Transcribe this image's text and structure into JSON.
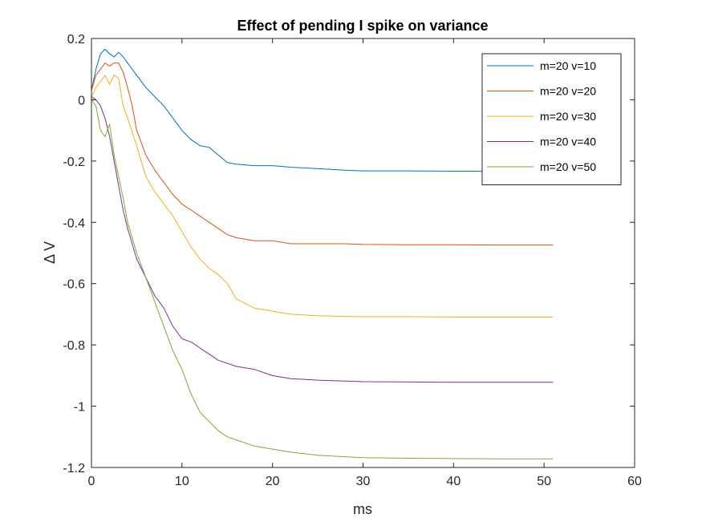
{
  "chart_data": {
    "type": "line",
    "title": "Effect of pending I spike on variance",
    "xlabel": "ms",
    "ylabel": "Δ V",
    "xlim": [
      0,
      60
    ],
    "ylim": [
      -1.2,
      0.2
    ],
    "xticks": [
      0,
      10,
      20,
      30,
      40,
      50,
      60
    ],
    "yticks": [
      -1.2,
      -1,
      -0.8,
      -0.6,
      -0.4,
      -0.2,
      0,
      0.2
    ],
    "xtick_labels": [
      "0",
      "10",
      "20",
      "30",
      "40",
      "50",
      "60"
    ],
    "ytick_labels": [
      "-1.2",
      "-1",
      "-0.8",
      "-0.6",
      "-0.4",
      "-0.2",
      "0",
      "0.2"
    ],
    "grid": false,
    "legend_position": "top-right",
    "series": [
      {
        "name": "m=20 v=10",
        "color": "#0072bd",
        "x": [
          0,
          0.5,
          1,
          1.5,
          2,
          2.5,
          3,
          3.5,
          4,
          5,
          6,
          7,
          8,
          9,
          10,
          11,
          12,
          13,
          14,
          15,
          16,
          18,
          20,
          22,
          25,
          28,
          30,
          35,
          40,
          45,
          51
        ],
        "y": [
          0.03,
          0.1,
          0.15,
          0.165,
          0.15,
          0.14,
          0.155,
          0.14,
          0.12,
          0.08,
          0.04,
          0.01,
          -0.02,
          -0.06,
          -0.1,
          -0.13,
          -0.15,
          -0.155,
          -0.18,
          -0.205,
          -0.21,
          -0.215,
          -0.215,
          -0.22,
          -0.225,
          -0.23,
          -0.232,
          -0.232,
          -0.233,
          -0.233,
          -0.233
        ]
      },
      {
        "name": "m=20 v=20",
        "color": "#d95319",
        "x": [
          0,
          0.5,
          1,
          1.5,
          2,
          2.5,
          3,
          3.5,
          4,
          4.5,
          5,
          6,
          7,
          8,
          9,
          10,
          11,
          12,
          13,
          14,
          15,
          16,
          18,
          20,
          22,
          25,
          28,
          30,
          35,
          40,
          45,
          51
        ],
        "y": [
          0.03,
          0.08,
          0.1,
          0.12,
          0.11,
          0.12,
          0.12,
          0.09,
          0.04,
          -0.02,
          -0.1,
          -0.18,
          -0.23,
          -0.27,
          -0.31,
          -0.34,
          -0.36,
          -0.38,
          -0.4,
          -0.42,
          -0.44,
          -0.45,
          -0.46,
          -0.46,
          -0.47,
          -0.47,
          -0.47,
          -0.472,
          -0.473,
          -0.473,
          -0.474,
          -0.474
        ]
      },
      {
        "name": "m=20 v=30",
        "color": "#edb120",
        "x": [
          0,
          0.5,
          1,
          1.5,
          2,
          2.5,
          3,
          3.5,
          4,
          5,
          6,
          7,
          8,
          9,
          10,
          11,
          12,
          13,
          14,
          15,
          16,
          18,
          20,
          22,
          25,
          28,
          30,
          35,
          40,
          45,
          51
        ],
        "y": [
          0.01,
          0.04,
          0.06,
          0.08,
          0.05,
          0.08,
          0.07,
          -0.02,
          -0.06,
          -0.15,
          -0.25,
          -0.3,
          -0.34,
          -0.38,
          -0.43,
          -0.48,
          -0.52,
          -0.55,
          -0.57,
          -0.6,
          -0.65,
          -0.68,
          -0.69,
          -0.7,
          -0.705,
          -0.707,
          -0.708,
          -0.708,
          -0.709,
          -0.709,
          -0.709
        ]
      },
      {
        "name": "m=20 v=40",
        "color": "#7e2f8e",
        "x": [
          0,
          0.5,
          1,
          1.5,
          2,
          2.5,
          3,
          3.5,
          4,
          5,
          6,
          7,
          8,
          9,
          10,
          11,
          12,
          13,
          14,
          15,
          16,
          18,
          20,
          22,
          25,
          28,
          30,
          35,
          40,
          45,
          51
        ],
        "y": [
          0.01,
          0.0,
          -0.02,
          -0.06,
          -0.12,
          -0.2,
          -0.28,
          -0.36,
          -0.42,
          -0.52,
          -0.58,
          -0.64,
          -0.68,
          -0.74,
          -0.78,
          -0.79,
          -0.81,
          -0.83,
          -0.85,
          -0.86,
          -0.87,
          -0.88,
          -0.9,
          -0.91,
          -0.915,
          -0.918,
          -0.92,
          -0.921,
          -0.922,
          -0.922,
          -0.922
        ]
      },
      {
        "name": "m=20 v=50",
        "color": "#77ac30",
        "x": [
          0,
          0.5,
          1,
          1.5,
          2,
          2.5,
          3,
          3.5,
          4,
          5,
          6,
          7,
          8,
          9,
          10,
          11,
          12,
          13,
          14,
          15,
          16,
          18,
          20,
          22,
          25,
          28,
          30,
          35,
          40,
          45,
          51
        ],
        "y": [
          0.0,
          -0.02,
          -0.1,
          -0.12,
          -0.08,
          -0.18,
          -0.25,
          -0.32,
          -0.4,
          -0.5,
          -0.58,
          -0.66,
          -0.74,
          -0.82,
          -0.88,
          -0.96,
          -1.02,
          -1.05,
          -1.08,
          -1.1,
          -1.11,
          -1.13,
          -1.14,
          -1.15,
          -1.16,
          -1.165,
          -1.168,
          -1.17,
          -1.171,
          -1.172,
          -1.172
        ]
      }
    ]
  }
}
